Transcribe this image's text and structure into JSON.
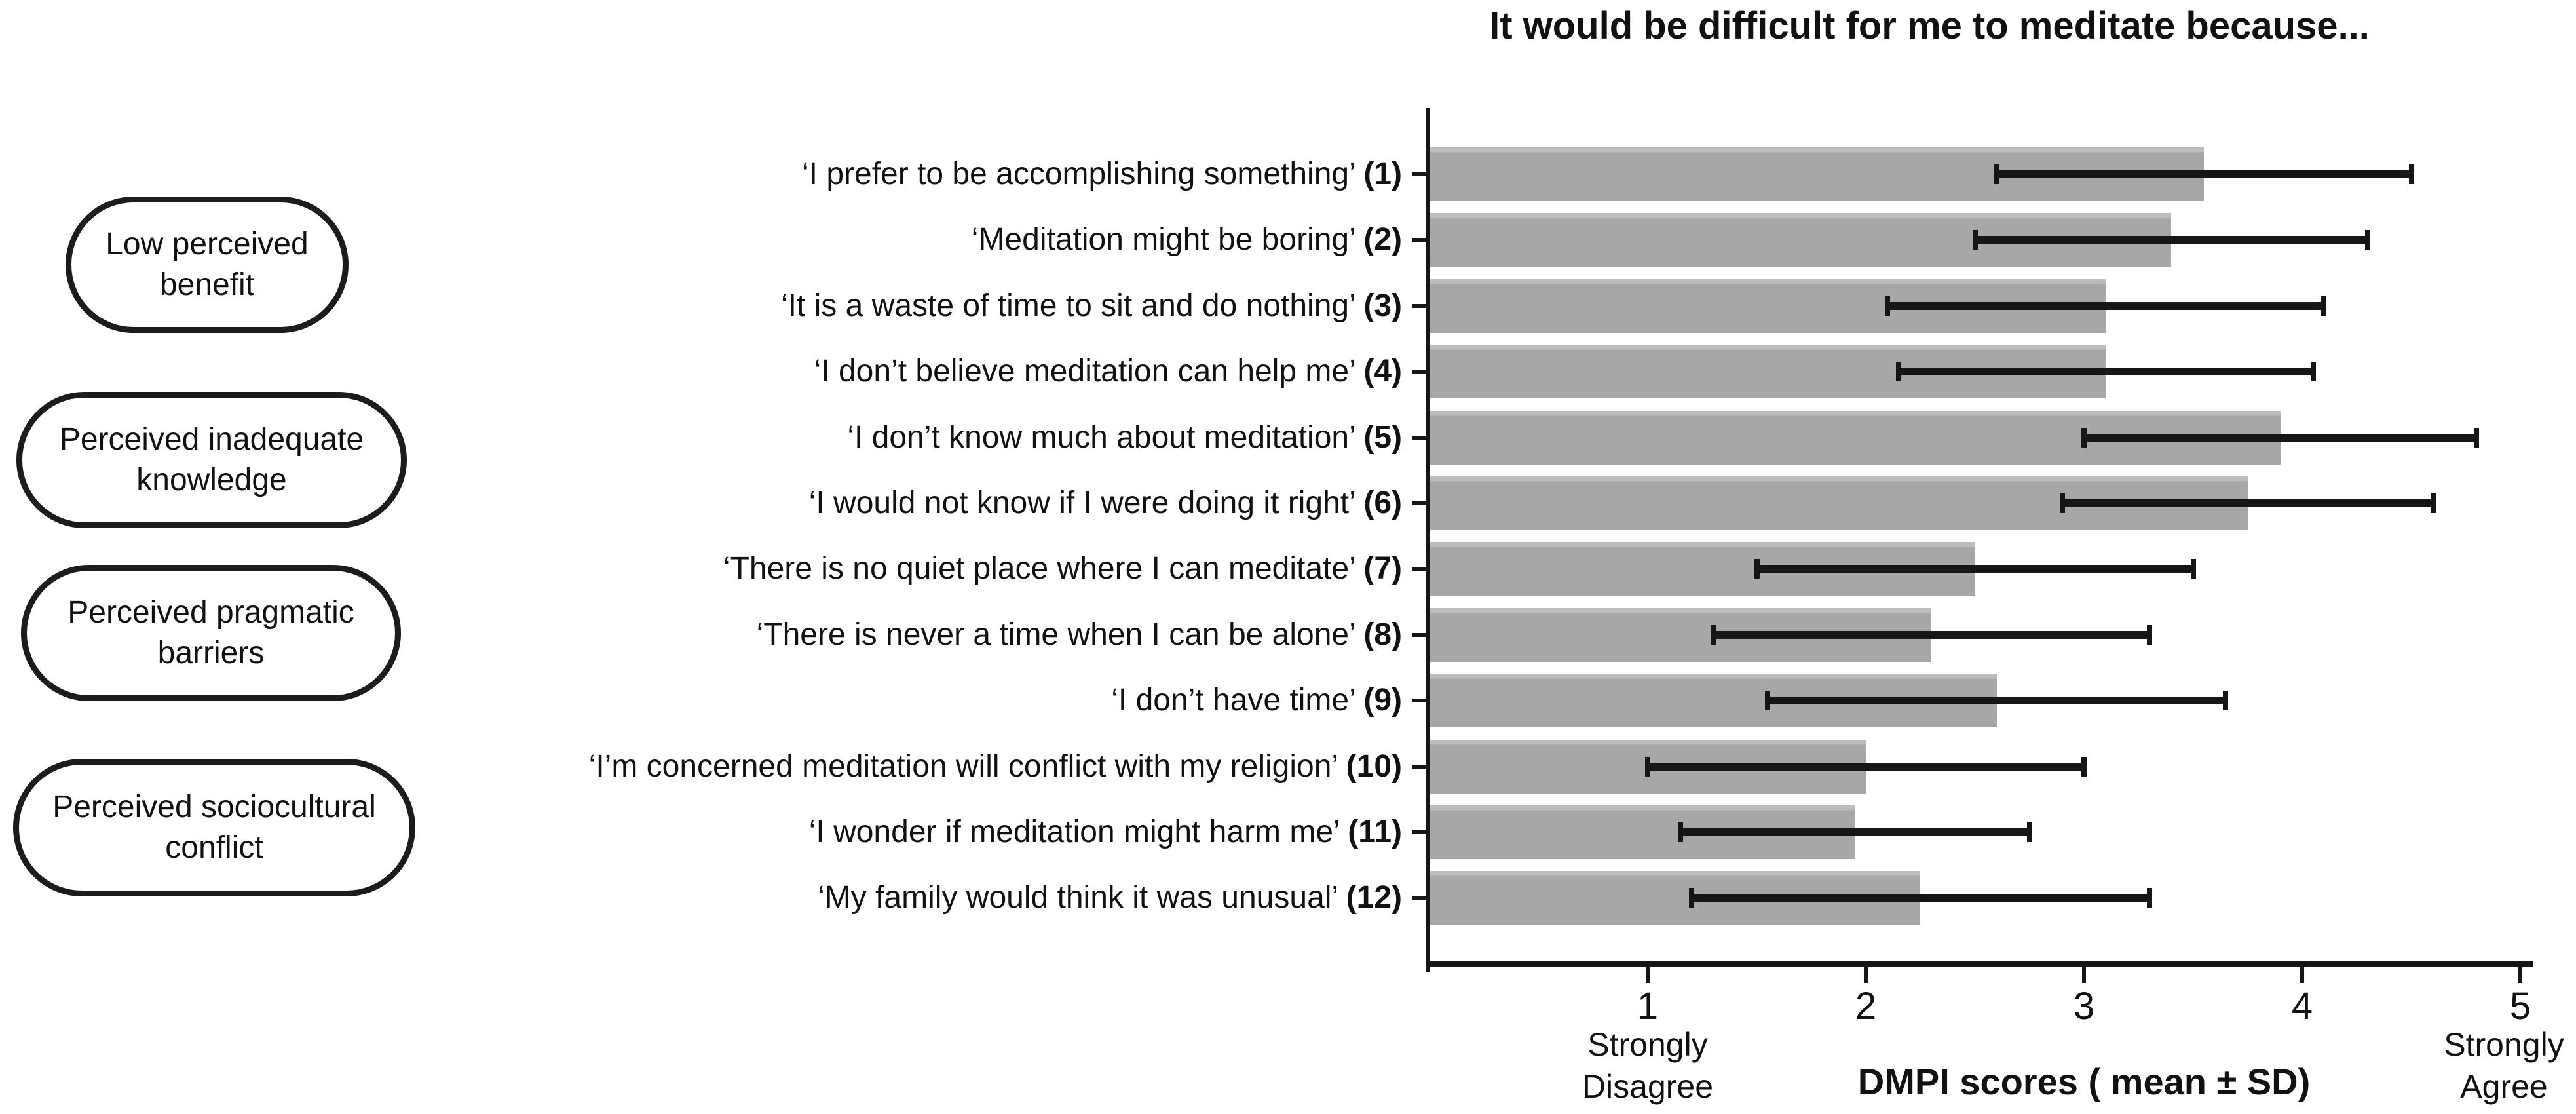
{
  "chart_data": {
    "type": "bar",
    "orientation": "horizontal",
    "title": "It would be difficult for me to meditate because...",
    "xlabel": "DMPI scores ( mean ± SD)",
    "xlim": [
      0,
      5
    ],
    "xticks": [
      "1",
      "2",
      "3",
      "4",
      "5"
    ],
    "x_end_labels": {
      "low_line1": "Strongly",
      "low_line2": "Disagree",
      "high_line1": "Strongly",
      "high_line2": "Agree"
    },
    "bar_color": "#a9a9a9",
    "error_bar_color": "#161616",
    "legend_position": "left",
    "grid": false,
    "items": [
      {
        "label": "‘I prefer to be accomplishing something’",
        "number": "(1)",
        "mean": 3.55,
        "sd": 0.95
      },
      {
        "label": "‘Meditation might be boring’",
        "number": "(2)",
        "mean": 3.4,
        "sd": 0.9
      },
      {
        "label": "‘It is a waste of time to sit and do nothing’",
        "number": "(3)",
        "mean": 3.1,
        "sd": 1.0
      },
      {
        "label": "‘I don’t believe meditation can help me’",
        "number": "(4)",
        "mean": 3.1,
        "sd": 0.95
      },
      {
        "label": "‘I don’t know much about meditation’",
        "number": "(5)",
        "mean": 3.9,
        "sd": 0.9
      },
      {
        "label": "‘I would not know if I were doing it right’",
        "number": "(6)",
        "mean": 3.75,
        "sd": 0.85
      },
      {
        "label": "‘There is no quiet place where I can meditate’",
        "number": "(7)",
        "mean": 2.5,
        "sd": 1.0
      },
      {
        "label": "‘There is never a time when I can be alone’",
        "number": "(8)",
        "mean": 2.3,
        "sd": 1.0
      },
      {
        "label": "‘I don’t have time’",
        "number": "(9)",
        "mean": 2.6,
        "sd": 1.05
      },
      {
        "label": "‘I’m concerned meditation will conflict with my religion’",
        "number": "(10)",
        "mean": 2.0,
        "sd": 1.0
      },
      {
        "label": "‘I wonder if meditation might harm me’",
        "number": "(11)",
        "mean": 1.95,
        "sd": 0.8
      },
      {
        "label": "‘My family would think it was unusual’",
        "number": "(12)",
        "mean": 2.25,
        "sd": 1.05
      }
    ],
    "groups": [
      {
        "line1": "Low perceived",
        "line2": "benefit"
      },
      {
        "line1": "Perceived inadequate",
        "line2": "knowledge"
      },
      {
        "line1": "Perceived pragmatic",
        "line2": "barriers"
      },
      {
        "line1": "Perceived sociocultural",
        "line2": "conflict"
      }
    ]
  }
}
